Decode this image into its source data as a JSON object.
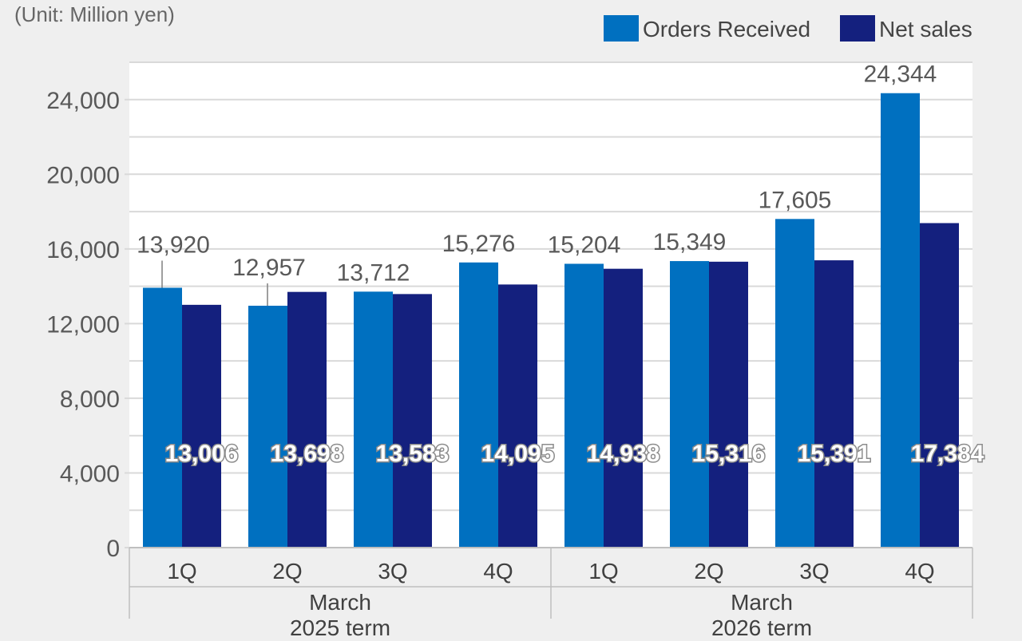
{
  "unit_label": "(Unit: Million yen)",
  "colors": {
    "orders": "#0070c0",
    "net_sales": "#14207e",
    "gridline": "#d9d9d9",
    "plot_background": "#ffffff",
    "page_background": "#efefef"
  },
  "chart_data": {
    "type": "bar",
    "categories": [
      "1Q",
      "2Q",
      "3Q",
      "4Q",
      "1Q",
      "2Q",
      "3Q",
      "4Q"
    ],
    "groups": [
      {
        "label_line1": "March",
        "label_line2": "2025 term",
        "categories": [
          "1Q",
          "2Q",
          "3Q",
          "4Q"
        ]
      },
      {
        "label_line1": "March",
        "label_line2": "2026 term",
        "categories": [
          "1Q",
          "2Q",
          "3Q",
          "4Q"
        ]
      }
    ],
    "series": [
      {
        "name": "Orders Received",
        "values": [
          13920,
          12957,
          13712,
          15276,
          15204,
          15349,
          17605,
          24344
        ]
      },
      {
        "name": "Net sales",
        "values": [
          13006,
          13698,
          13583,
          14095,
          14938,
          15316,
          15391,
          17384
        ]
      }
    ],
    "data_labels": {
      "orders": [
        "13,920",
        "12,957",
        "13,712",
        "15,276",
        "15,204",
        "15,349",
        "17,605",
        "24,344"
      ],
      "net_sales": [
        "13,006",
        "13,698",
        "13,583",
        "14,095",
        "14,938",
        "15,316",
        "15,391",
        "17,384"
      ]
    },
    "yticks": [
      0,
      4000,
      8000,
      12000,
      16000,
      20000,
      24000
    ],
    "ytick_labels": [
      "0",
      "4,000",
      "8,000",
      "12,000",
      "16,000",
      "20,000",
      "24,000"
    ],
    "ylim": [
      0,
      26000
    ],
    "grid": true,
    "legend_position": "top-right",
    "title": "",
    "xlabel": "",
    "ylabel": ""
  }
}
